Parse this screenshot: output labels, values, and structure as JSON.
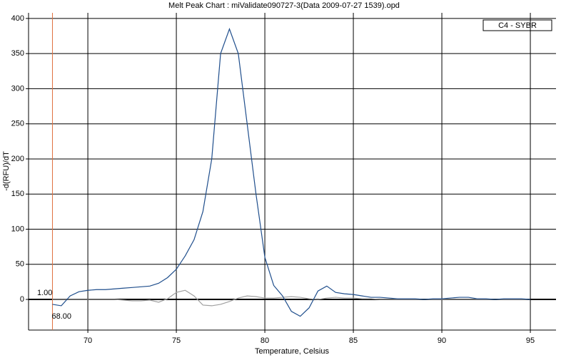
{
  "chart_data": {
    "type": "line",
    "title": "Melt Peak Chart : miValidate090727-3(Data 2009-07-27 1539).opd",
    "x_label": "Temperature, Celsius",
    "y_label": "-d(RFU)/dT",
    "legend_text": "C4 - SYBR",
    "xlim": [
      66.65,
      96.45
    ],
    "ylim": [
      -43.6,
      408
    ],
    "xticks": [
      70,
      75,
      80,
      85,
      90,
      95
    ],
    "yticks": [
      0,
      50,
      100,
      150,
      200,
      250,
      300,
      350,
      400
    ],
    "grid": true,
    "marker_line": {
      "value": 68,
      "label": "68.00",
      "color": "#e07040"
    },
    "threshold": {
      "value": 1,
      "label": "1.00"
    },
    "x": [
      68,
      68.5,
      69,
      69.5,
      70,
      70.5,
      71,
      71.5,
      72,
      72.5,
      73,
      73.5,
      74,
      74.5,
      75,
      75.5,
      76,
      76.5,
      77,
      77.5,
      78,
      78.5,
      79,
      79.5,
      80,
      80.5,
      81,
      81.5,
      82,
      82.5,
      83,
      83.5,
      84,
      84.5,
      85,
      85.5,
      86,
      86.5,
      87,
      87.5,
      88,
      88.5,
      89,
      89.5,
      90,
      90.5,
      91,
      91.5,
      92,
      92.5,
      93,
      93.5,
      94,
      94.5,
      95
    ],
    "series": [
      {
        "color": "#1f4e8c",
        "values": [
          -7,
          -9,
          5,
          11,
          13,
          14,
          14,
          15,
          16,
          17,
          18,
          19,
          23,
          31,
          43,
          62,
          85,
          125,
          200,
          350,
          385,
          350,
          250,
          150,
          60,
          20,
          5,
          -17,
          -24,
          -12,
          12,
          19,
          10,
          8,
          7,
          5,
          3,
          3,
          2,
          1,
          1,
          1,
          0,
          1,
          1,
          2,
          3,
          3,
          1,
          1,
          0,
          1,
          1,
          1,
          0
        ]
      },
      {
        "color": "#a0a0a0",
        "values": [
          0,
          0,
          0,
          0,
          0,
          0,
          0,
          0,
          -1,
          -2,
          -2,
          -1,
          -4,
          1,
          10,
          13,
          5,
          -8,
          -9,
          -7,
          -3,
          2,
          5,
          4,
          2,
          2,
          3,
          4,
          3,
          1,
          0,
          2,
          3,
          2,
          2,
          1,
          1,
          0,
          0,
          0,
          0,
          0,
          0,
          0,
          0,
          0,
          0,
          0,
          0,
          0,
          0,
          0,
          0,
          0,
          0
        ]
      }
    ]
  }
}
